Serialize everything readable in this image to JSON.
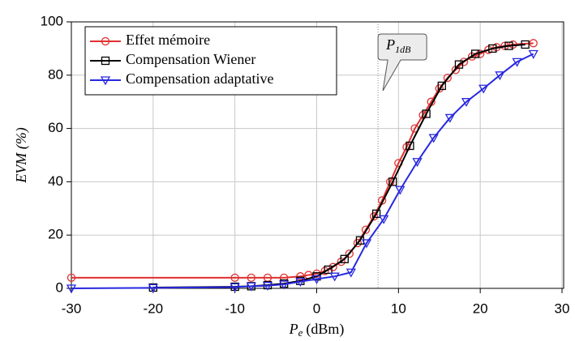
{
  "chart_data": {
    "type": "line",
    "xlabel": {
      "main": "P",
      "sub": "e",
      "unit": "(dBm)"
    },
    "ylabel": "EVM (%)",
    "xlim": [
      -30,
      30
    ],
    "xticks": [
      -30,
      -20,
      -10,
      0,
      10,
      20,
      30
    ],
    "ylim": [
      0,
      100
    ],
    "yticks": [
      0,
      20,
      40,
      60,
      80,
      100
    ],
    "grid": true,
    "legend": "upper left",
    "annotation": {
      "text": "P",
      "sub": "1dB",
      "x": 7.5
    },
    "series": [
      {
        "name": "Effet mémoire",
        "color": "#e03030",
        "marker": "circle",
        "x": [
          -30,
          -10,
          -8,
          -6,
          -4,
          -2,
          -1,
          0,
          1,
          2,
          3,
          4,
          5,
          6,
          7,
          8,
          9,
          10,
          11,
          12,
          13,
          14,
          15,
          16,
          17,
          18,
          19,
          20,
          21,
          22,
          23,
          24,
          26.5
        ],
        "values": [
          4,
          4,
          4,
          4,
          4,
          4.5,
          5,
          5.5,
          6.5,
          8,
          10,
          13,
          17,
          22,
          27,
          33,
          40,
          47,
          53,
          60,
          65,
          70,
          75,
          79,
          82,
          85,
          87,
          88,
          89.5,
          90.5,
          91,
          91.5,
          92
        ]
      },
      {
        "name": "Compensation Wiener",
        "color": "#000000",
        "marker": "square",
        "x": [
          -20,
          -10,
          -8,
          -6,
          -4,
          -2,
          0,
          1.4,
          3.4,
          5.3,
          7.3,
          9.3,
          11.4,
          13.4,
          15.3,
          17.4,
          19.4,
          21.5,
          23.5,
          25.5
        ],
        "values": [
          0.3,
          0.6,
          0.8,
          1.2,
          1.8,
          2.8,
          4.5,
          7,
          11,
          18,
          28,
          40,
          53.5,
          65.5,
          76,
          84,
          88,
          90,
          91,
          91.5
        ]
      },
      {
        "name": "Compensation adaptative",
        "color": "#2828e0",
        "marker": "triangle-down",
        "x": [
          -30,
          -20,
          -10,
          -8,
          -6,
          -4,
          -2,
          0,
          2.2,
          4.2,
          6.1,
          8.2,
          10.2,
          12.3,
          14.3,
          16.3,
          18.3,
          20.4,
          22.4,
          24.5,
          26.5
        ],
        "values": [
          0,
          0.2,
          0.5,
          0.8,
          1,
          1.5,
          2.5,
          3.5,
          4.5,
          6,
          17,
          26,
          37,
          47.5,
          56.5,
          64,
          70,
          75,
          80,
          85,
          88
        ]
      }
    ]
  }
}
